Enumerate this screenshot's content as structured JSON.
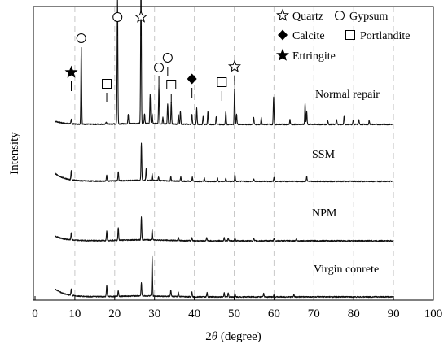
{
  "chart_data": {
    "type": "line",
    "xlabel_prefix": "2",
    "xlabel_theta": "θ",
    "xlabel_suffix": " (degree)",
    "ylabel": "Intensity",
    "xlim": [
      0,
      100
    ],
    "x_ticks": [
      0,
      10,
      20,
      30,
      40,
      50,
      60,
      70,
      80,
      90,
      100
    ],
    "x_tick_labels": [
      "0",
      "10",
      "20",
      "30",
      "40",
      "50",
      "60",
      "70",
      "80",
      "90",
      "100"
    ],
    "gridlines_x": [
      10,
      20,
      30,
      40,
      50,
      60,
      70,
      80,
      90
    ],
    "grid": "vertical dashed",
    "legend_position": "top-right",
    "legend": [
      {
        "symbol": "open-star",
        "label": "Quartz"
      },
      {
        "symbol": "open-circle",
        "label": "Gypsum"
      },
      {
        "symbol": "filled-diamond",
        "label": "Calcite"
      },
      {
        "symbol": "open-square",
        "label": "Portlandite"
      },
      {
        "symbol": "filled-star",
        "label": "Ettringite"
      }
    ],
    "series": [
      {
        "name": "Normal repair",
        "x_range": [
          5,
          90
        ],
        "peaks": [
          {
            "x": 9.1,
            "h": 6
          },
          {
            "x": 11.6,
            "h": 94
          },
          {
            "x": 17.9,
            "h": 3
          },
          {
            "x": 20.7,
            "h": 153
          },
          {
            "x": 23.4,
            "h": 12
          },
          {
            "x": 26.6,
            "h": 176
          },
          {
            "x": 27.5,
            "h": 12
          },
          {
            "x": 28.9,
            "h": 36
          },
          {
            "x": 29.4,
            "h": 12
          },
          {
            "x": 31.1,
            "h": 46
          },
          {
            "x": 32.1,
            "h": 8
          },
          {
            "x": 33.3,
            "h": 25
          },
          {
            "x": 34.2,
            "h": 26
          },
          {
            "x": 36.0,
            "h": 12
          },
          {
            "x": 36.5,
            "h": 16
          },
          {
            "x": 39.4,
            "h": 12
          },
          {
            "x": 40.6,
            "h": 20
          },
          {
            "x": 42.2,
            "h": 10
          },
          {
            "x": 43.4,
            "h": 16
          },
          {
            "x": 45.5,
            "h": 10
          },
          {
            "x": 47.9,
            "h": 16
          },
          {
            "x": 50.1,
            "h": 44
          },
          {
            "x": 50.6,
            "h": 13
          },
          {
            "x": 54.9,
            "h": 8
          },
          {
            "x": 56.8,
            "h": 8
          },
          {
            "x": 59.9,
            "h": 34
          },
          {
            "x": 64.0,
            "h": 6
          },
          {
            "x": 67.8,
            "h": 26
          },
          {
            "x": 68.2,
            "h": 16
          },
          {
            "x": 73.5,
            "h": 5
          },
          {
            "x": 75.7,
            "h": 6
          },
          {
            "x": 77.6,
            "h": 10
          },
          {
            "x": 79.9,
            "h": 6
          },
          {
            "x": 81.3,
            "h": 6
          },
          {
            "x": 83.9,
            "h": 5
          }
        ]
      },
      {
        "name": "SSM",
        "x_range": [
          5,
          90
        ],
        "peaks": [
          {
            "x": 9.1,
            "h": 12
          },
          {
            "x": 18.0,
            "h": 7
          },
          {
            "x": 20.9,
            "h": 11
          },
          {
            "x": 26.7,
            "h": 46
          },
          {
            "x": 27.9,
            "h": 14
          },
          {
            "x": 29.4,
            "h": 8
          },
          {
            "x": 31.0,
            "h": 5
          },
          {
            "x": 34.1,
            "h": 5
          },
          {
            "x": 36.6,
            "h": 5
          },
          {
            "x": 39.5,
            "h": 5
          },
          {
            "x": 42.5,
            "h": 4
          },
          {
            "x": 45.8,
            "h": 4
          },
          {
            "x": 47.9,
            "h": 4
          },
          {
            "x": 50.2,
            "h": 8
          },
          {
            "x": 54.9,
            "h": 3
          },
          {
            "x": 60.0,
            "h": 5
          },
          {
            "x": 68.2,
            "h": 6
          }
        ]
      },
      {
        "name": "NPM",
        "x_range": [
          5,
          90
        ],
        "peaks": [
          {
            "x": 9.1,
            "h": 9
          },
          {
            "x": 18.0,
            "h": 12
          },
          {
            "x": 20.9,
            "h": 16
          },
          {
            "x": 26.7,
            "h": 28
          },
          {
            "x": 29.4,
            "h": 13
          },
          {
            "x": 36.0,
            "h": 4
          },
          {
            "x": 39.4,
            "h": 4
          },
          {
            "x": 43.1,
            "h": 4
          },
          {
            "x": 47.5,
            "h": 4
          },
          {
            "x": 48.5,
            "h": 3
          },
          {
            "x": 50.2,
            "h": 4
          },
          {
            "x": 54.9,
            "h": 3
          },
          {
            "x": 60.0,
            "h": 3
          },
          {
            "x": 65.6,
            "h": 3
          }
        ]
      },
      {
        "name": "Virgin conrete",
        "x_range": [
          5,
          90
        ],
        "peaks": [
          {
            "x": 9.1,
            "h": 8
          },
          {
            "x": 18.0,
            "h": 14
          },
          {
            "x": 20.9,
            "h": 7
          },
          {
            "x": 26.7,
            "h": 16
          },
          {
            "x": 29.4,
            "h": 48
          },
          {
            "x": 34.1,
            "h": 8
          },
          {
            "x": 36.0,
            "h": 5
          },
          {
            "x": 39.4,
            "h": 6
          },
          {
            "x": 43.2,
            "h": 5
          },
          {
            "x": 47.5,
            "h": 5
          },
          {
            "x": 48.5,
            "h": 5
          },
          {
            "x": 50.2,
            "h": 4
          },
          {
            "x": 57.4,
            "h": 4
          },
          {
            "x": 60.0,
            "h": 3
          },
          {
            "x": 65.0,
            "h": 3
          }
        ]
      }
    ],
    "phase_markers": [
      {
        "symbol": "filled-star",
        "x": 9.1
      },
      {
        "symbol": "open-circle",
        "x": 11.6
      },
      {
        "symbol": "open-square",
        "x": 18.0
      },
      {
        "symbol": "open-circle",
        "x": 20.7
      },
      {
        "symbol": "open-star",
        "x": 26.6
      },
      {
        "symbol": "open-circle",
        "x": 31.1
      },
      {
        "symbol": "open-circle",
        "x": 33.3
      },
      {
        "symbol": "open-square",
        "x": 34.2
      },
      {
        "symbol": "filled-diamond",
        "x": 39.4
      },
      {
        "symbol": "open-square",
        "x": 46.9
      },
      {
        "symbol": "open-star",
        "x": 50.1
      }
    ]
  }
}
